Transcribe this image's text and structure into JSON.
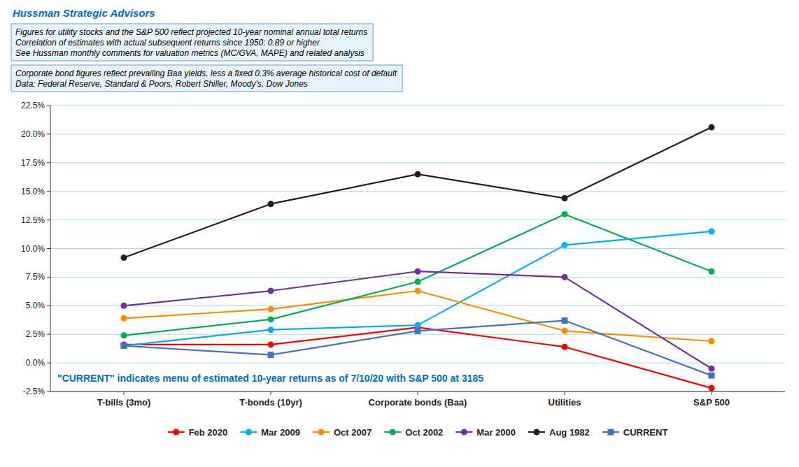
{
  "chart_data": {
    "type": "line",
    "title": "Hussman Strategic Advisors",
    "annotations": [
      "Figures for utility stocks and the S&P 500  reflect projected 10-year nominal annual total returns",
      "Correlation of estimates with actual subsequent returns since 1950:  0.89 or higher",
      "See Hussman monthly comments for valuation metrics (MC/GVA, MAPE) and related analysis",
      "Corporate bond figures reflect prevailing Baa yields, less a fixed 0.3% average historical cost of default",
      "Data: Federal Reserve, Standard & Poors, Robert Shiller, Moody's, Dow Jones",
      "\"CURRENT\" indicates menu of estimated 10-year returns as of 7/10/20 with S&P 500 at 3185"
    ],
    "categories": [
      "T-bills (3mo)",
      "T-bonds (10yr)",
      "Corporate bonds (Baa)",
      "Utilities",
      "S&P 500"
    ],
    "series": [
      {
        "name": "Feb 2020",
        "color": "#FF0000",
        "marker": "circle",
        "values": [
          1.6,
          1.6,
          3.1,
          1.4,
          -2.2
        ]
      },
      {
        "name": "Mar 2009",
        "color": "#00B0F0",
        "marker": "circle",
        "values": [
          1.5,
          2.9,
          3.3,
          10.3,
          11.5
        ]
      },
      {
        "name": "Oct 2007",
        "color": "#FF8C00",
        "marker": "circle",
        "values": [
          3.9,
          4.7,
          6.3,
          2.8,
          1.9
        ]
      },
      {
        "name": "Oct 2002",
        "color": "#00B050",
        "marker": "circle",
        "values": [
          2.4,
          3.8,
          7.1,
          13.0,
          8.0
        ]
      },
      {
        "name": "Mar 2000",
        "color": "#7030A0",
        "marker": "circle",
        "values": [
          5.0,
          6.3,
          8.0,
          7.5,
          -0.5
        ]
      },
      {
        "name": "Aug 1982",
        "color": "#1F1F1F",
        "marker": "circle",
        "values": [
          9.2,
          13.9,
          16.5,
          14.4,
          20.6
        ]
      },
      {
        "name": "CURRENT",
        "color": "#4472C4",
        "marker": "square",
        "values": [
          1.5,
          0.7,
          2.8,
          3.7,
          -1.1
        ]
      }
    ],
    "ylim": [
      -2.5,
      22.5
    ],
    "yticks": [
      {
        "value": -2.5,
        "label": "-2.5%"
      },
      {
        "value": 0.0,
        "label": "0.0%"
      },
      {
        "value": 2.5,
        "label": "2.5%"
      },
      {
        "value": 5.0,
        "label": "5.0%"
      },
      {
        "value": 7.5,
        "label": "7.5%"
      },
      {
        "value": 10.0,
        "label": "10.0%"
      },
      {
        "value": 12.5,
        "label": "12.5%"
      },
      {
        "value": 15.0,
        "label": "15.0%"
      },
      {
        "value": 17.5,
        "label": "17.5%"
      },
      {
        "value": 20.0,
        "label": "20.0%"
      },
      {
        "value": 22.5,
        "label": "22.5%"
      }
    ],
    "grid": true,
    "legend": "bottom"
  }
}
